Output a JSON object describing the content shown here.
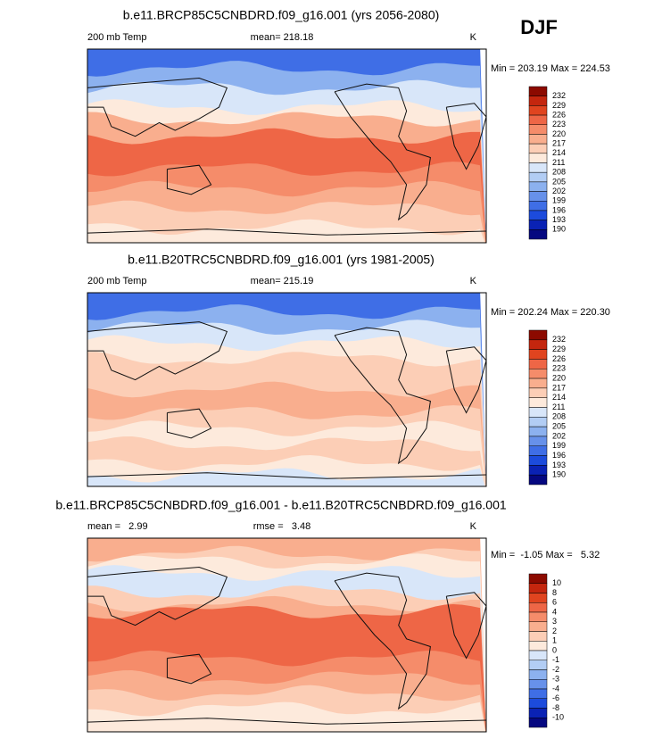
{
  "header": {
    "season": "DJF"
  },
  "panels": [
    {
      "title": "b.e11.BRCP85C5CNBDRD.f09_g16.001 (yrs 2056-2080)",
      "left": "200 mb Temp",
      "center": "mean= 218.18",
      "right": "K",
      "minmax": "Min = 203.19 Max = 224.53",
      "colorbar_labels": [
        "232",
        "229",
        "226",
        "223",
        "220",
        "217",
        "214",
        "211",
        "208",
        "205",
        "202",
        "199",
        "196",
        "193",
        "190"
      ]
    },
    {
      "title": "b.e11.B20TRC5CNBDRD.f09_g16.001 (yrs 1981-2005)",
      "left": "200 mb Temp",
      "center": "mean= 215.19",
      "right": "K",
      "minmax": "Min = 202.24 Max = 220.30",
      "colorbar_labels": [
        "232",
        "229",
        "226",
        "223",
        "220",
        "217",
        "214",
        "211",
        "208",
        "205",
        "202",
        "199",
        "196",
        "193",
        "190"
      ]
    },
    {
      "title": "b.e11.BRCP85C5CNBDRD.f09_g16.001 - b.e11.B20TRC5CNBDRD.f09_g16.001",
      "left": "mean =   2.99",
      "center": "rmse =   3.48",
      "right": "K",
      "minmax": "Min =  -1.05 Max =   5.32",
      "colorbar_labels": [
        "10",
        "8",
        "6",
        "4",
        "3",
        "2",
        "1",
        "0",
        "-1",
        "-2",
        "-3",
        "-4",
        "-6",
        "-8",
        "-10"
      ]
    }
  ]
}
